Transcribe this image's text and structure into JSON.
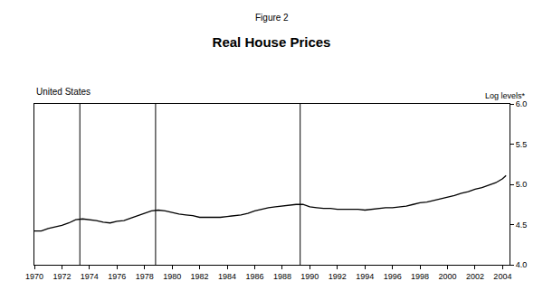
{
  "chart_data": {
    "type": "line",
    "figure_label": "Figure 2",
    "title": "Real House Prices",
    "subtitle": "United States",
    "y_label": "Log levels*",
    "color": "#000000",
    "x": [
      1970,
      1970.5,
      1971,
      1971.5,
      1972,
      1972.5,
      1973,
      1973.5,
      1974,
      1974.5,
      1975,
      1975.5,
      1976,
      1976.5,
      1977,
      1977.5,
      1978,
      1978.5,
      1979,
      1979.5,
      1980,
      1980.5,
      1981,
      1981.5,
      1982,
      1982.5,
      1983,
      1983.5,
      1984,
      1984.5,
      1985,
      1985.5,
      1986,
      1986.5,
      1987,
      1987.5,
      1988,
      1988.5,
      1989,
      1989.5,
      1990,
      1990.5,
      1991,
      1991.5,
      1992,
      1992.5,
      1993,
      1993.5,
      1994,
      1994.5,
      1995,
      1995.5,
      1996,
      1996.5,
      1997,
      1997.5,
      1998,
      1998.5,
      1999,
      1999.5,
      2000,
      2000.5,
      2001,
      2001.5,
      2002,
      2002.5,
      2003,
      2003.5,
      2004,
      2004.25
    ],
    "values": [
      4.42,
      4.42,
      4.45,
      4.47,
      4.49,
      4.52,
      4.56,
      4.57,
      4.56,
      4.55,
      4.53,
      4.52,
      4.54,
      4.55,
      4.58,
      4.61,
      4.64,
      4.67,
      4.68,
      4.67,
      4.65,
      4.63,
      4.62,
      4.61,
      4.59,
      4.59,
      4.59,
      4.59,
      4.6,
      4.61,
      4.62,
      4.64,
      4.67,
      4.69,
      4.71,
      4.72,
      4.73,
      4.74,
      4.75,
      4.75,
      4.72,
      4.71,
      4.7,
      4.7,
      4.69,
      4.69,
      4.69,
      4.69,
      4.68,
      4.69,
      4.7,
      4.71,
      4.71,
      4.72,
      4.73,
      4.75,
      4.77,
      4.78,
      4.8,
      4.82,
      4.84,
      4.86,
      4.89,
      4.91,
      4.94,
      4.96,
      4.99,
      5.02,
      5.07,
      5.11
    ],
    "peaks": [
      1973.3,
      1978.8,
      1989.3
    ],
    "xlim": [
      1970,
      2004.5
    ],
    "xticks": [
      1970,
      1972,
      1974,
      1976,
      1978,
      1980,
      1982,
      1984,
      1986,
      1988,
      1990,
      1992,
      1994,
      1996,
      1998,
      2000,
      2002,
      2004
    ],
    "ylim": [
      4,
      6
    ],
    "yticks": [
      {
        "value": 4,
        "label": "4.0"
      },
      4.5,
      {
        "value": 5,
        "label": "5.0"
      },
      5.5,
      {
        "value": 6,
        "label": "6.0"
      }
    ],
    "grid": false
  }
}
